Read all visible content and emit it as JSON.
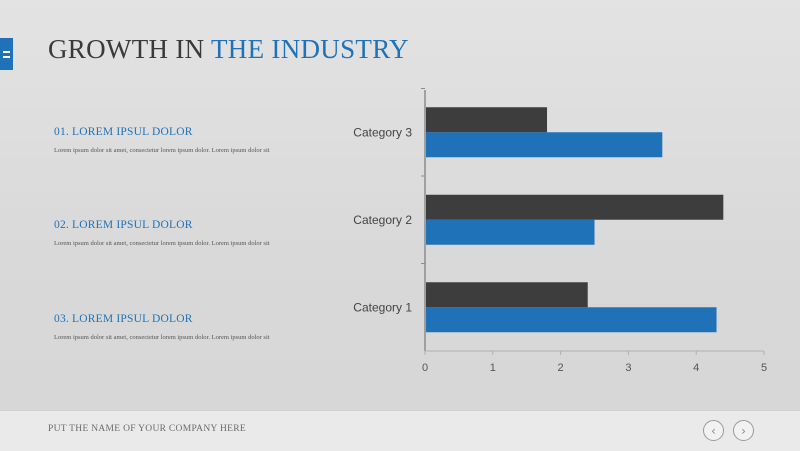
{
  "title": {
    "main": "GROWTH IN",
    "accent": "THE INDUSTRY"
  },
  "points": [
    {
      "heading": "01. LOREM IPSUL DOLOR",
      "body": "Lorem ipsum dolor sit amet, consectetur lorem ipsum dolor. Lorem ipsum dolor sit"
    },
    {
      "heading": "02. LOREM IPSUL DOLOR",
      "body": "Lorem ipsum dolor sit amet, consectetur lorem ipsum dolor. Lorem ipsum dolor sit"
    },
    {
      "heading": "03. LOREM IPSUL DOLOR",
      "body": "Lorem ipsum dolor sit amet, consectetur lorem ipsum dolor. Lorem ipsum dolor sit"
    }
  ],
  "footer": {
    "company": "PUT THE NAME OF YOUR COMPANY HERE",
    "prev_icon": "chevron-left-icon",
    "next_icon": "chevron-right-icon"
  },
  "icons": {
    "menu": "menu-icon"
  },
  "colors": {
    "accent": "#1f72b8",
    "dark": "#3d3d3d"
  },
  "chart_data": {
    "type": "bar",
    "orientation": "horizontal",
    "categories": [
      "Category 1",
      "Category 2",
      "Category 3"
    ],
    "series": [
      {
        "color": "#1f72b8",
        "values": [
          4.3,
          2.5,
          3.5
        ]
      },
      {
        "color": "#3d3d3d",
        "values": [
          2.4,
          4.4,
          1.8
        ]
      }
    ],
    "xlim": [
      0,
      5
    ],
    "xticks": [
      "0",
      "1",
      "2",
      "3",
      "4",
      "5"
    ],
    "grid": false,
    "legend": "none"
  }
}
